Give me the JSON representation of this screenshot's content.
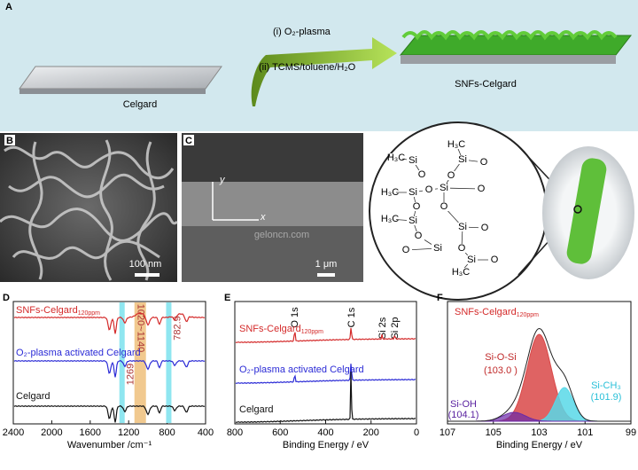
{
  "panel_a": {
    "letter": "A",
    "step_1": "(i) O₂-plasma",
    "step_2": "(ii) TCMS/toluene/H₂O",
    "left_label": "Celgard",
    "right_label": "SNFs-Celgard"
  },
  "panel_b": {
    "letter": "B",
    "scale_bar": "100 nm"
  },
  "panel_c": {
    "letter": "C",
    "axis_y": "y",
    "axis_x": "x",
    "scale_bar": "1 μm"
  },
  "watermark": "geloncn.com",
  "molecule": {
    "labels": [
      "H₃C",
      "Si",
      "O",
      "H₃C",
      "Si",
      "O",
      "O",
      "Si",
      "O",
      "Si",
      "H₃C",
      "O",
      "O",
      "Si",
      "H₃C",
      "O",
      "Si",
      "O",
      "O",
      "Si",
      "O",
      "O",
      "Si",
      "O",
      "H₃C"
    ]
  },
  "panel_d": {
    "letter": "D",
    "xlim": [
      2400,
      400
    ],
    "xticks": [
      2400,
      2000,
      1600,
      1200,
      800,
      400
    ],
    "x_label": "Wavenumber /cm⁻¹",
    "traces": [
      {
        "name": "SNFs-Celgard",
        "sub": "120ppm",
        "color": "#d42a2a"
      },
      {
        "name": "O₂-plasma activated Celgard",
        "color": "#2b2bd6"
      },
      {
        "name": "Celgard",
        "color": "#111111"
      }
    ],
    "bands": [
      {
        "from": 1020,
        "to": 1140,
        "label": "1020~1140",
        "color": "#f1c98f"
      },
      {
        "at": 1269,
        "label": "1269",
        "color": "#8fe6f0"
      },
      {
        "at": 782.9,
        "label": "782.9",
        "color": "#8fe6f0"
      }
    ]
  },
  "panel_e": {
    "letter": "E",
    "xlim": [
      800,
      0
    ],
    "xticks": [
      800,
      600,
      400,
      200,
      0
    ],
    "x_label": "Binding Energy / eV",
    "peaks": [
      "O 1s",
      "C 1s",
      "Si 2s",
      "Si 2p"
    ],
    "traces": [
      {
        "name": "SNFs-Celgard",
        "sub": "120ppm",
        "color": "#d42a2a"
      },
      {
        "name": "O₂-plasma activated Celgard",
        "color": "#2b2bd6"
      },
      {
        "name": "Celgard",
        "color": "#111111"
      }
    ]
  },
  "panel_f": {
    "letter": "F",
    "xlim": [
      107,
      99
    ],
    "xticks": [
      107,
      105,
      103,
      101,
      99
    ],
    "x_label": "Binding Energy / eV",
    "title": {
      "name": "SNFs-Celgard",
      "sub": "120ppm"
    },
    "components": [
      {
        "name": "Si-O-Si",
        "value": 103.0,
        "label": "(103.0 )",
        "color": "#d94848"
      },
      {
        "name": "Si-CH₃",
        "value": 101.9,
        "label": "(101.9)",
        "color": "#58d8e8"
      },
      {
        "name": "Si-OH",
        "value": 104.1,
        "label": "(104.1)",
        "color": "#6a2aa8"
      }
    ]
  }
}
